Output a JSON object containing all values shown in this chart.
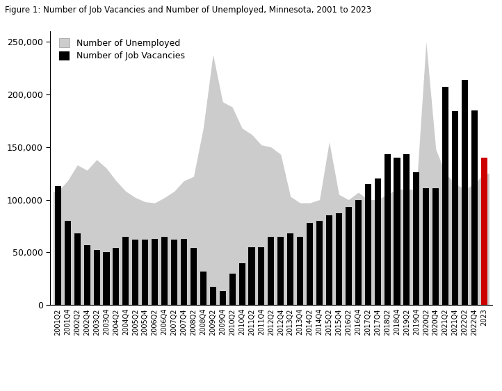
{
  "title": "Figure 1: Number of Job Vacancies and Number of Unemployed, Minnesota, 2001 to 2023",
  "labels": [
    "2001Q2",
    "2001Q4",
    "2002Q2",
    "2002Q4",
    "2003Q2",
    "2003Q4",
    "2004Q2",
    "2004Q4",
    "2005Q2",
    "2005Q4",
    "2006Q2",
    "2006Q4",
    "2007Q2",
    "2007Q4",
    "2008Q2",
    "2008Q4",
    "2009Q2",
    "2009Q4",
    "2010Q2",
    "2010Q4",
    "2011Q2",
    "2011Q4",
    "2012Q2",
    "2012Q4",
    "2013Q2",
    "2013Q4",
    "2014Q2",
    "2014Q4",
    "2015Q2",
    "2015Q4",
    "2016Q2",
    "2016Q4",
    "2017Q2",
    "2017Q4",
    "2018Q2",
    "2018Q4",
    "2019Q2",
    "2019Q4",
    "2020Q2",
    "2020Q4",
    "2021Q2",
    "2021Q4",
    "2022Q2",
    "2022Q4",
    "2023"
  ],
  "unemployed": [
    108000,
    118000,
    133000,
    128000,
    138000,
    130000,
    118000,
    108000,
    102000,
    98000,
    97000,
    102000,
    108000,
    118000,
    122000,
    168000,
    238000,
    193000,
    188000,
    168000,
    162000,
    152000,
    150000,
    143000,
    103000,
    97000,
    97000,
    100000,
    155000,
    105000,
    100000,
    107000,
    100000,
    100000,
    105000,
    110000,
    110000,
    110000,
    250000,
    148000,
    125000,
    115000,
    110000,
    115000,
    125000
  ],
  "vacancies": [
    113000,
    80000,
    68000,
    57000,
    52000,
    50000,
    54000,
    65000,
    62000,
    62000,
    63000,
    65000,
    62000,
    63000,
    54000,
    32000,
    17000,
    13000,
    30000,
    40000,
    55000,
    55000,
    65000,
    65000,
    68000,
    65000,
    78000,
    80000,
    85000,
    87000,
    93000,
    100000,
    115000,
    120000,
    143000,
    140000,
    143000,
    126000,
    111000,
    111000,
    207000,
    184000,
    214000,
    185000,
    140000
  ],
  "bar_color_default": "#000000",
  "bar_color_last": "#cc0000",
  "area_color": "#cccccc",
  "ylim": [
    0,
    260000
  ],
  "yticks": [
    0,
    50000,
    100000,
    150000,
    200000,
    250000
  ],
  "ytick_labels": [
    "0",
    "50,000",
    "100,000",
    "150,000",
    "200,000",
    "250,000"
  ]
}
